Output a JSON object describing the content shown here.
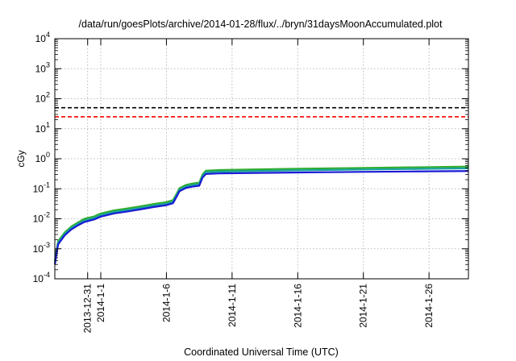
{
  "chart_data": {
    "type": "line",
    "title": "/data/run/goesPlots/archive/2014-01-28/flux/../bryn/31daysMoonAccumulated.plot",
    "xlabel": "Coordinated Universal Time (UTC)",
    "ylabel": "cGy",
    "y_scale": "log",
    "ylim": [
      0.0001,
      10000
    ],
    "xlim": [
      "2013-12-28T12:00",
      "2014-01-29T00:00"
    ],
    "grid": true,
    "y_ticks": [
      {
        "value": 0.0001,
        "base": "10",
        "exp": "-4"
      },
      {
        "value": 0.001,
        "base": "10",
        "exp": "-3"
      },
      {
        "value": 0.01,
        "base": "10",
        "exp": "-2"
      },
      {
        "value": 0.1,
        "base": "10",
        "exp": "-1"
      },
      {
        "value": 1,
        "base": "10",
        "exp": "0"
      },
      {
        "value": 10,
        "base": "10",
        "exp": "1"
      },
      {
        "value": 100,
        "base": "10",
        "exp": "2"
      },
      {
        "value": 1000,
        "base": "10",
        "exp": "3"
      },
      {
        "value": 10000,
        "base": "10",
        "exp": "4"
      }
    ],
    "x_ticks": [
      {
        "date": "2013-12-31",
        "label": "2013-12-31"
      },
      {
        "date": "2014-01-01",
        "label": "2014-1-1"
      },
      {
        "date": "2014-01-06",
        "label": "2014-1-6"
      },
      {
        "date": "2014-01-11",
        "label": "2014-1-11"
      },
      {
        "date": "2014-01-16",
        "label": "2014-1-16"
      },
      {
        "date": "2014-01-21",
        "label": "2014-1-21"
      },
      {
        "date": "2014-01-26",
        "label": "2014-1-26"
      }
    ],
    "reference_lines": [
      {
        "value": 50,
        "color": "#000000",
        "style": "dashed"
      },
      {
        "value": 25,
        "color": "#ff0000",
        "style": "dashed"
      }
    ],
    "series": [
      {
        "color": "#2fae2f",
        "points": [
          [
            "2013-12-28T12:00",
            0.0004
          ],
          [
            "2013-12-28T18:00",
            0.0018
          ],
          [
            "2013-12-29T06:00",
            0.0035
          ],
          [
            "2013-12-29T18:00",
            0.0055
          ],
          [
            "2013-12-30T06:00",
            0.0075
          ],
          [
            "2013-12-30T18:00",
            0.01
          ],
          [
            "2013-12-31T12:00",
            0.012
          ],
          [
            "2014-01-01T00:00",
            0.015
          ],
          [
            "2014-01-02T00:00",
            0.019
          ],
          [
            "2014-01-03T00:00",
            0.022
          ],
          [
            "2014-01-04T00:00",
            0.026
          ],
          [
            "2014-01-05T00:00",
            0.031
          ],
          [
            "2014-01-06T00:00",
            0.036
          ],
          [
            "2014-01-06T12:00",
            0.042
          ],
          [
            "2014-01-06T18:00",
            0.065
          ],
          [
            "2014-01-07T00:00",
            0.105
          ],
          [
            "2014-01-07T12:00",
            0.135
          ],
          [
            "2014-01-08T00:00",
            0.15
          ],
          [
            "2014-01-08T12:00",
            0.16
          ],
          [
            "2014-01-08T18:00",
            0.3
          ],
          [
            "2014-01-09T00:00",
            0.4
          ],
          [
            "2014-01-10T00:00",
            0.42
          ],
          [
            "2014-01-15T00:00",
            0.46
          ],
          [
            "2014-01-20T00:00",
            0.49
          ],
          [
            "2014-01-25T00:00",
            0.52
          ],
          [
            "2014-01-29T00:00",
            0.55
          ]
        ]
      },
      {
        "color": "#19a0a0",
        "points": [
          [
            "2013-12-28T12:00",
            0.00035
          ],
          [
            "2013-12-28T18:00",
            0.0016
          ],
          [
            "2013-12-29T06:00",
            0.0031
          ],
          [
            "2013-12-29T18:00",
            0.0049
          ],
          [
            "2013-12-30T06:00",
            0.0067
          ],
          [
            "2013-12-30T18:00",
            0.0088
          ],
          [
            "2013-12-31T12:00",
            0.0106
          ],
          [
            "2014-01-01T00:00",
            0.0133
          ],
          [
            "2014-01-02T00:00",
            0.0168
          ],
          [
            "2014-01-03T00:00",
            0.0195
          ],
          [
            "2014-01-04T00:00",
            0.023
          ],
          [
            "2014-01-05T00:00",
            0.0274
          ],
          [
            "2014-01-06T00:00",
            0.0318
          ],
          [
            "2014-01-06T12:00",
            0.037
          ],
          [
            "2014-01-06T18:00",
            0.058
          ],
          [
            "2014-01-07T00:00",
            0.093
          ],
          [
            "2014-01-07T12:00",
            0.12
          ],
          [
            "2014-01-08T00:00",
            0.133
          ],
          [
            "2014-01-08T12:00",
            0.142
          ],
          [
            "2014-01-08T18:00",
            0.265
          ],
          [
            "2014-01-09T00:00",
            0.355
          ],
          [
            "2014-01-10T00:00",
            0.372
          ],
          [
            "2014-01-15T00:00",
            0.405
          ],
          [
            "2014-01-20T00:00",
            0.432
          ],
          [
            "2014-01-25T00:00",
            0.458
          ],
          [
            "2014-01-29T00:00",
            0.48
          ]
        ]
      },
      {
        "color": "#1a1ad6",
        "points": [
          [
            "2013-12-28T12:00",
            0.0003
          ],
          [
            "2013-12-28T18:00",
            0.0014
          ],
          [
            "2013-12-29T06:00",
            0.0028
          ],
          [
            "2013-12-29T18:00",
            0.0044
          ],
          [
            "2013-12-30T06:00",
            0.006
          ],
          [
            "2013-12-30T18:00",
            0.0078
          ],
          [
            "2013-12-31T12:00",
            0.0095
          ],
          [
            "2014-01-01T00:00",
            0.0118
          ],
          [
            "2014-01-02T00:00",
            0.015
          ],
          [
            "2014-01-03T00:00",
            0.0174
          ],
          [
            "2014-01-04T00:00",
            0.0205
          ],
          [
            "2014-01-05T00:00",
            0.0245
          ],
          [
            "2014-01-06T00:00",
            0.0284
          ],
          [
            "2014-01-06T12:00",
            0.033
          ],
          [
            "2014-01-06T18:00",
            0.052
          ],
          [
            "2014-01-07T00:00",
            0.083
          ],
          [
            "2014-01-07T12:00",
            0.107
          ],
          [
            "2014-01-08T00:00",
            0.118
          ],
          [
            "2014-01-08T12:00",
            0.126
          ],
          [
            "2014-01-08T18:00",
            0.235
          ],
          [
            "2014-01-09T00:00",
            0.31
          ],
          [
            "2014-01-10T00:00",
            0.325
          ],
          [
            "2014-01-15T00:00",
            0.345
          ],
          [
            "2014-01-20T00:00",
            0.362
          ],
          [
            "2014-01-25T00:00",
            0.378
          ],
          [
            "2014-01-29T00:00",
            0.39
          ]
        ]
      }
    ]
  }
}
